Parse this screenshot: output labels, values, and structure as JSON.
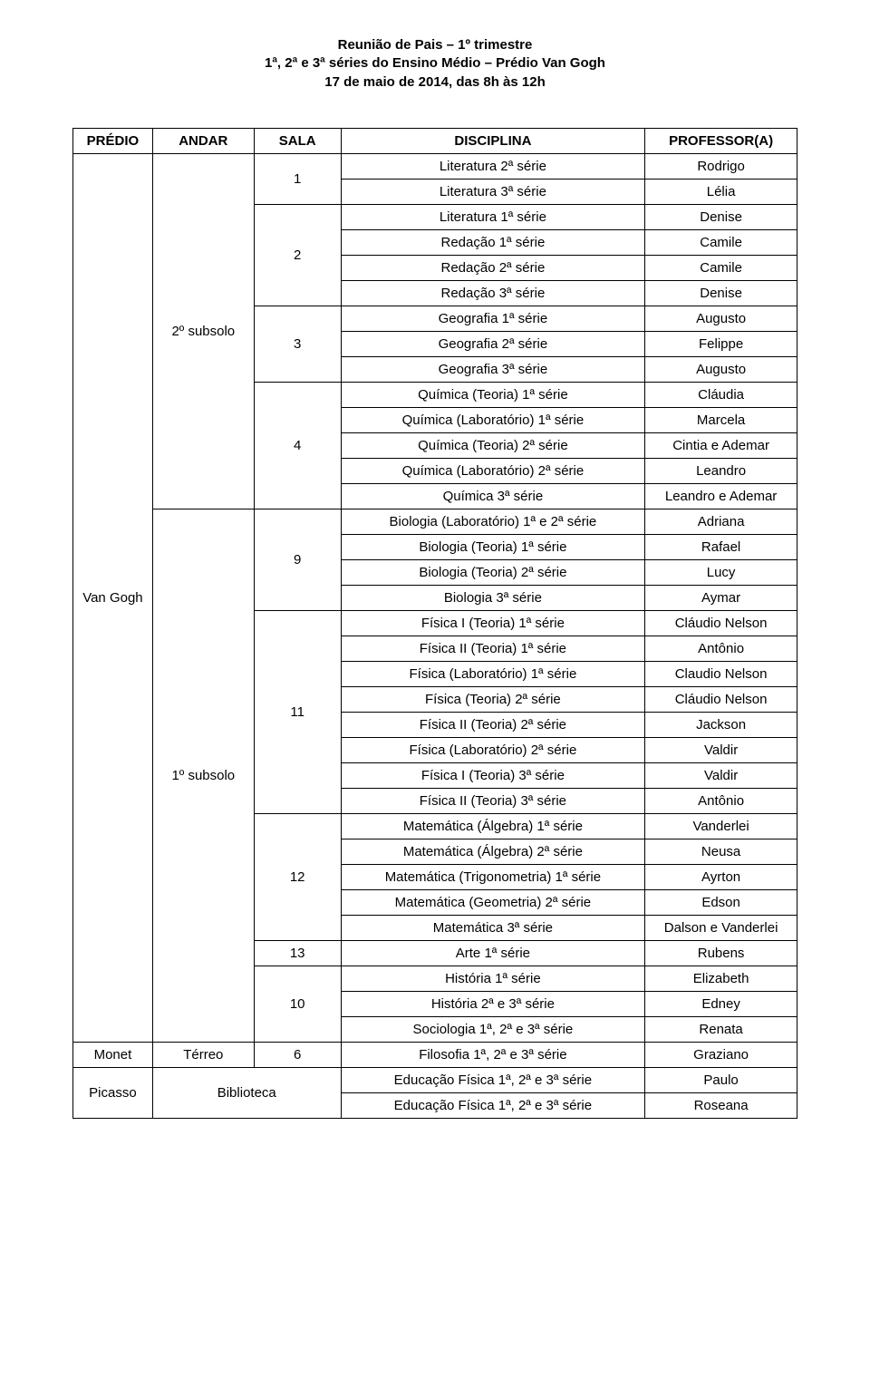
{
  "header": {
    "line1": "Reunião de Pais – 1º trimestre",
    "line2": "1ª, 2ª e 3ª séries do Ensino Médio – Prédio Van Gogh",
    "line3": "17 de maio de 2014, das 8h às 12h"
  },
  "columns": [
    "PRÉDIO",
    "ANDAR",
    "SALA",
    "DISCIPLINA",
    "PROFESSOR(A)"
  ],
  "predio": {
    "vangogh": "Van Gogh",
    "monet": "Monet",
    "picasso": "Picasso"
  },
  "andar": {
    "sub2": "2º subsolo",
    "sub1": "1º subsolo",
    "terreo": "Térreo"
  },
  "sala": {
    "s1": "1",
    "s2": "2",
    "s3": "3",
    "s4": "4",
    "s9": "9",
    "s11": "11",
    "s12": "12",
    "s13": "13",
    "s10": "10",
    "s6": "6",
    "biblioteca": "Biblioteca"
  },
  "rows": [
    {
      "disc": "Literatura 2ª série",
      "prof": "Rodrigo"
    },
    {
      "disc": "Literatura 3ª série",
      "prof": "Lélia"
    },
    {
      "disc": "Literatura 1ª série",
      "prof": "Denise"
    },
    {
      "disc": "Redação 1ª série",
      "prof": "Camile"
    },
    {
      "disc": "Redação 2ª série",
      "prof": "Camile"
    },
    {
      "disc": "Redação 3ª série",
      "prof": "Denise"
    },
    {
      "disc": "Geografia 1ª série",
      "prof": "Augusto"
    },
    {
      "disc": "Geografia 2ª série",
      "prof": "Felippe"
    },
    {
      "disc": "Geografia 3ª série",
      "prof": "Augusto"
    },
    {
      "disc": "Química (Teoria) 1ª série",
      "prof": "Cláudia"
    },
    {
      "disc": "Química (Laboratório) 1ª série",
      "prof": "Marcela"
    },
    {
      "disc": "Química (Teoria) 2ª série",
      "prof": "Cintia e Ademar"
    },
    {
      "disc": "Química (Laboratório) 2ª série",
      "prof": "Leandro"
    },
    {
      "disc": "Química 3ª série",
      "prof": "Leandro e Ademar"
    },
    {
      "disc": "Biologia (Laboratório) 1ª e 2ª série",
      "prof": "Adriana"
    },
    {
      "disc": "Biologia (Teoria) 1ª série",
      "prof": "Rafael"
    },
    {
      "disc": "Biologia (Teoria) 2ª série",
      "prof": "Lucy"
    },
    {
      "disc": "Biologia 3ª série",
      "prof": "Aymar"
    },
    {
      "disc": "Física I (Teoria) 1ª série",
      "prof": "Cláudio Nelson"
    },
    {
      "disc": "Física II (Teoria) 1ª série",
      "prof": "Antônio"
    },
    {
      "disc": "Física (Laboratório) 1ª série",
      "prof": "Claudio Nelson"
    },
    {
      "disc": "Física (Teoria) 2ª série",
      "prof": "Cláudio Nelson"
    },
    {
      "disc": "Física II (Teoria) 2ª série",
      "prof": "Jackson"
    },
    {
      "disc": "Física (Laboratório) 2ª série",
      "prof": "Valdir"
    },
    {
      "disc": "Física I (Teoria) 3ª série",
      "prof": "Valdir"
    },
    {
      "disc": "Física II (Teoria) 3ª série",
      "prof": "Antônio"
    },
    {
      "disc": "Matemática (Álgebra) 1ª série",
      "prof": "Vanderlei"
    },
    {
      "disc": "Matemática (Álgebra) 2ª série",
      "prof": "Neusa"
    },
    {
      "disc": "Matemática (Trigonometria) 1ª série",
      "prof": "Ayrton"
    },
    {
      "disc": "Matemática (Geometria) 2ª série",
      "prof": "Edson"
    },
    {
      "disc": "Matemática 3ª série",
      "prof": "Dalson e Vanderlei"
    },
    {
      "disc": "Arte 1ª série",
      "prof": "Rubens"
    },
    {
      "disc": "História 1ª série",
      "prof": "Elizabeth"
    },
    {
      "disc": "História 2ª e 3ª série",
      "prof": "Edney"
    },
    {
      "disc": "Sociologia 1ª, 2ª e 3ª série",
      "prof": "Renata"
    },
    {
      "disc": "Filosofia 1ª, 2ª e 3ª série",
      "prof": "Graziano"
    },
    {
      "disc": "Educação Física 1ª, 2ª e 3ª série",
      "prof": "Paulo"
    },
    {
      "disc": "Educação Física 1ª, 2ª e 3ª série",
      "prof": "Roseana"
    }
  ]
}
